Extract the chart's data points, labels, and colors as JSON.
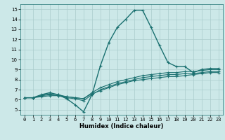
{
  "xlabel": "Humidex (Indice chaleur)",
  "ylabel": "",
  "xlim": [
    -0.5,
    23.5
  ],
  "ylim": [
    4.5,
    15.5
  ],
  "xticks": [
    0,
    1,
    2,
    3,
    4,
    5,
    6,
    7,
    8,
    9,
    10,
    11,
    12,
    13,
    14,
    15,
    16,
    17,
    18,
    19,
    20,
    21,
    22,
    23
  ],
  "yticks": [
    5,
    6,
    7,
    8,
    9,
    10,
    11,
    12,
    13,
    14,
    15
  ],
  "bg_color": "#cce8e8",
  "line_color": "#1a7070",
  "grid_color": "#aacccc",
  "series": [
    {
      "x": [
        0,
        1,
        2,
        3,
        4,
        5,
        6,
        7,
        8,
        9,
        10,
        11,
        12,
        13,
        14,
        15,
        16,
        17,
        18,
        19,
        20,
        21,
        22,
        23
      ],
      "y": [
        6.2,
        6.2,
        6.5,
        6.7,
        6.5,
        6.1,
        5.5,
        4.8,
        6.5,
        9.4,
        11.7,
        13.2,
        14.0,
        14.9,
        14.9,
        13.2,
        11.4,
        9.7,
        9.3,
        9.3,
        8.7,
        9.0,
        9.1,
        9.1
      ],
      "marker": "+",
      "markersize": 3.5,
      "linewidth": 1.0
    },
    {
      "x": [
        0,
        1,
        2,
        3,
        4,
        5,
        6,
        7,
        8,
        9,
        10,
        11,
        12,
        13,
        14,
        15,
        16,
        17,
        18,
        19,
        20,
        21,
        22,
        23
      ],
      "y": [
        6.2,
        6.2,
        6.4,
        6.6,
        6.5,
        6.3,
        6.2,
        6.1,
        6.7,
        7.2,
        7.5,
        7.8,
        8.0,
        8.2,
        8.4,
        8.5,
        8.6,
        8.7,
        8.7,
        8.8,
        8.8,
        8.9,
        9.0,
        9.0
      ],
      "marker": "+",
      "markersize": 3.0,
      "linewidth": 0.8
    },
    {
      "x": [
        0,
        1,
        2,
        3,
        4,
        5,
        6,
        7,
        8,
        9,
        10,
        11,
        12,
        13,
        14,
        15,
        16,
        17,
        18,
        19,
        20,
        21,
        22,
        23
      ],
      "y": [
        6.2,
        6.2,
        6.4,
        6.5,
        6.4,
        6.2,
        6.1,
        5.9,
        6.5,
        7.0,
        7.3,
        7.6,
        7.8,
        8.0,
        8.2,
        8.3,
        8.4,
        8.5,
        8.5,
        8.6,
        8.6,
        8.7,
        8.8,
        8.8
      ],
      "marker": "+",
      "markersize": 3.0,
      "linewidth": 0.8
    },
    {
      "x": [
        0,
        1,
        2,
        3,
        4,
        5,
        6,
        7,
        8,
        9,
        10,
        11,
        12,
        13,
        14,
        15,
        16,
        17,
        18,
        19,
        20,
        21,
        22,
        23
      ],
      "y": [
        6.2,
        6.2,
        6.3,
        6.4,
        6.4,
        6.3,
        6.2,
        6.1,
        6.6,
        6.9,
        7.2,
        7.5,
        7.7,
        7.9,
        8.0,
        8.1,
        8.2,
        8.3,
        8.3,
        8.4,
        8.5,
        8.6,
        8.7,
        8.7
      ],
      "marker": "+",
      "markersize": 3.0,
      "linewidth": 0.8
    }
  ],
  "axis_fontsize": 5.5,
  "tick_fontsize": 5.0,
  "xlabel_fontsize": 6.0
}
